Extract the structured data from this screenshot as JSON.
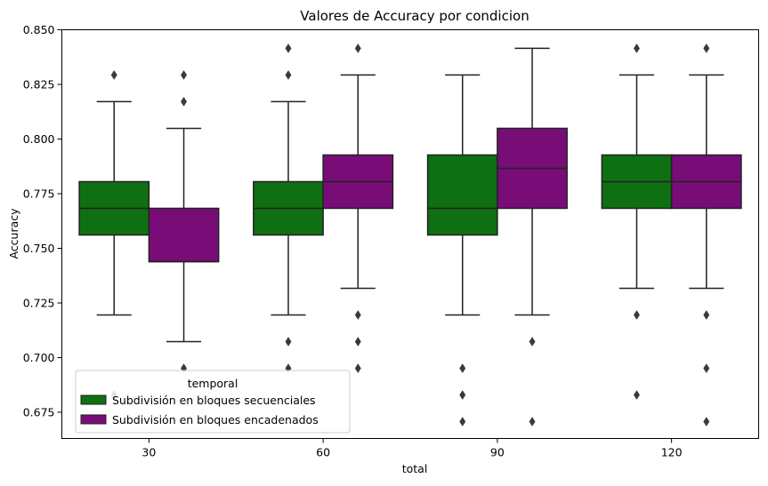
{
  "chart_data": {
    "type": "box",
    "title": "Valores de Accuracy por condicion",
    "xlabel": "total",
    "ylabel": "Accuracy",
    "ylim": [
      0.663,
      0.85
    ],
    "yticks": [
      "0.675",
      "0.700",
      "0.725",
      "0.750",
      "0.775",
      "0.800",
      "0.825",
      "0.850"
    ],
    "categories": [
      "30",
      "60",
      "90",
      "120"
    ],
    "legend": {
      "title": "temporal",
      "placement": "lower-left"
    },
    "series": [
      {
        "name": "Subdivisión en bloques secuenciales",
        "color": "#0e7012",
        "boxes": [
          {
            "category": "30",
            "whisker_low": 0.7195,
            "q1": 0.7561,
            "median": 0.7683,
            "q3": 0.7805,
            "whisker_high": 0.8171,
            "outliers": [
              0.8293,
              0.6829
            ]
          },
          {
            "category": "60",
            "whisker_low": 0.7195,
            "q1": 0.7561,
            "median": 0.7683,
            "q3": 0.7805,
            "whisker_high": 0.8171,
            "outliers": [
              0.8415,
              0.8293,
              0.7073,
              0.6951
            ]
          },
          {
            "category": "90",
            "whisker_low": 0.7195,
            "q1": 0.7561,
            "median": 0.7683,
            "q3": 0.7927,
            "whisker_high": 0.8293,
            "outliers": [
              0.6951,
              0.6829,
              0.6707
            ]
          },
          {
            "category": "120",
            "whisker_low": 0.7317,
            "q1": 0.7683,
            "median": 0.7805,
            "q3": 0.7927,
            "whisker_high": 0.8293,
            "outliers": [
              0.8415,
              0.7195,
              0.6829
            ]
          }
        ]
      },
      {
        "name": "Subdivisión en bloques encadenados",
        "color": "#780d78",
        "boxes": [
          {
            "category": "30",
            "whisker_low": 0.7073,
            "q1": 0.7439,
            "median": 0.7439,
            "q3": 0.7683,
            "whisker_high": 0.8049,
            "outliers": [
              0.8293,
              0.8171,
              0.6951
            ]
          },
          {
            "category": "60",
            "whisker_low": 0.7317,
            "q1": 0.7683,
            "median": 0.7805,
            "q3": 0.7927,
            "whisker_high": 0.8293,
            "outliers": [
              0.8415,
              0.7195,
              0.7073,
              0.6951
            ]
          },
          {
            "category": "90",
            "whisker_low": 0.7195,
            "q1": 0.7683,
            "median": 0.7866,
            "q3": 0.8049,
            "whisker_high": 0.8415,
            "outliers": [
              0.7073,
              0.6707
            ]
          },
          {
            "category": "120",
            "whisker_low": 0.7317,
            "q1": 0.7683,
            "median": 0.7805,
            "q3": 0.7927,
            "whisker_high": 0.8293,
            "outliers": [
              0.8415,
              0.7195,
              0.6951,
              0.6707
            ]
          }
        ]
      }
    ]
  }
}
